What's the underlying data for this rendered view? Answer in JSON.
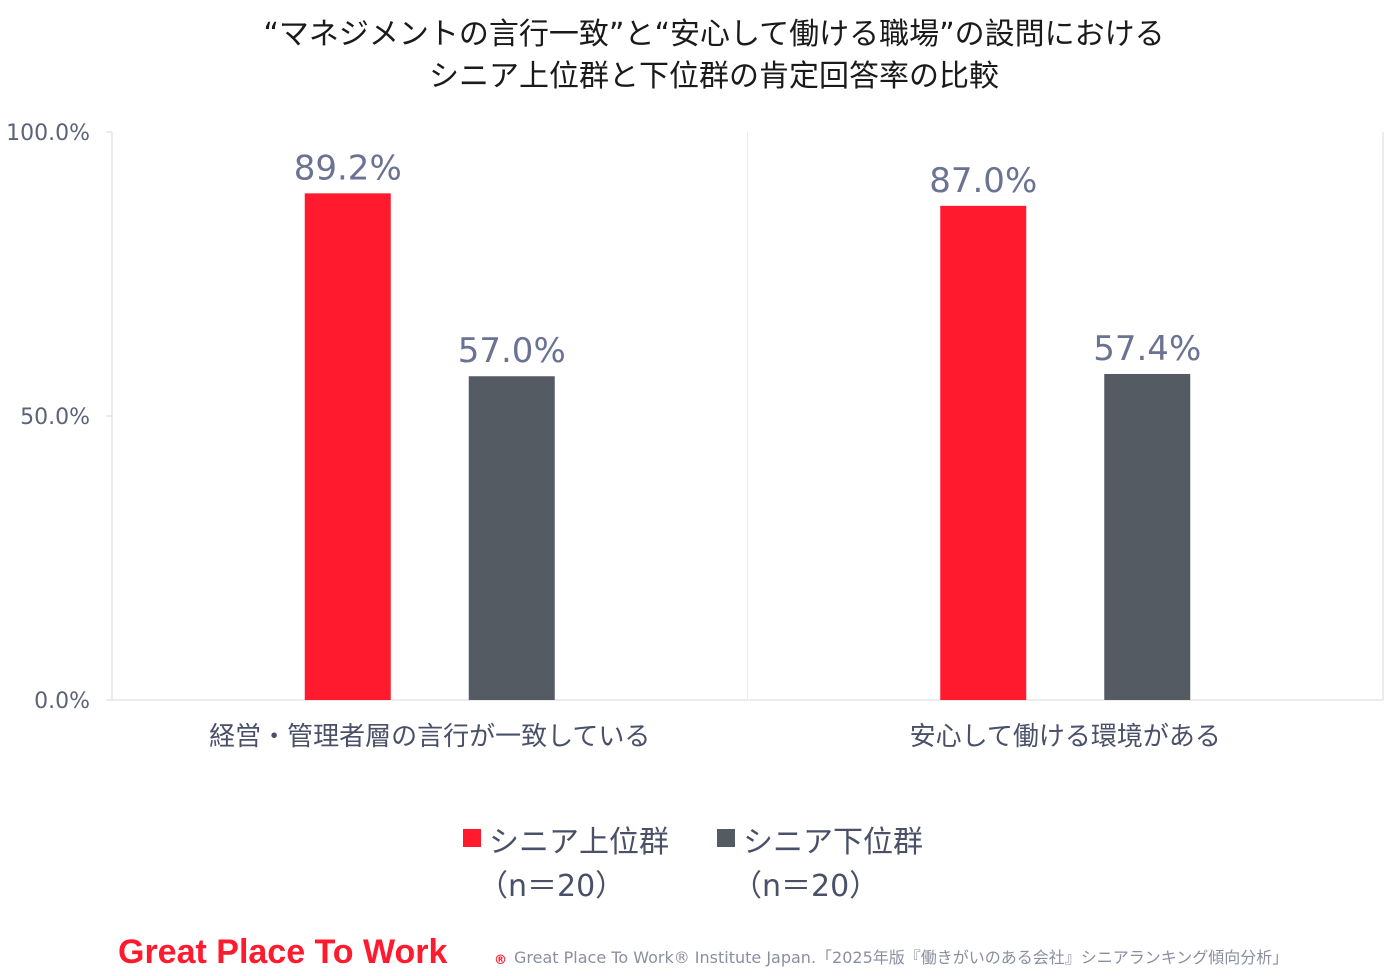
{
  "title": {
    "line1": "“マネジメントの言行一致”と“安心して働ける職場”の設問における",
    "line2": "シニア上位群と下位群の肯定回答率の比較"
  },
  "colors": {
    "upper": "#ff1a2d",
    "lower": "#555b63",
    "axis": "#d9d9d9",
    "label": "#6b7394"
  },
  "chart_data": {
    "type": "bar",
    "categories": [
      "経営・管理者層の言行が一致している",
      "安心して働ける環境がある"
    ],
    "series": [
      {
        "name": "シニア上位群",
        "name_sub": "（n＝20）",
        "values": [
          89.2,
          87.0
        ],
        "value_labels": [
          "89.2%",
          "87.0%"
        ]
      },
      {
        "name": "シニア下位群",
        "name_sub": "（n＝20）",
        "values": [
          57.0,
          57.4
        ],
        "value_labels": [
          "57.0%",
          "57.4%"
        ]
      }
    ],
    "ylim": [
      0,
      100
    ],
    "yticks": [
      0,
      50,
      100
    ],
    "ytick_labels": [
      "0.0%",
      "50.0%",
      "100.0%"
    ],
    "grid": false,
    "legend": "bottom"
  },
  "footer": {
    "brand": "Great Place To Work",
    "brand_mark": "®",
    "source": "Great Place To Work® Institute Japan.「2025年版『働きがいのある会社』シニアランキング傾向分析」"
  }
}
